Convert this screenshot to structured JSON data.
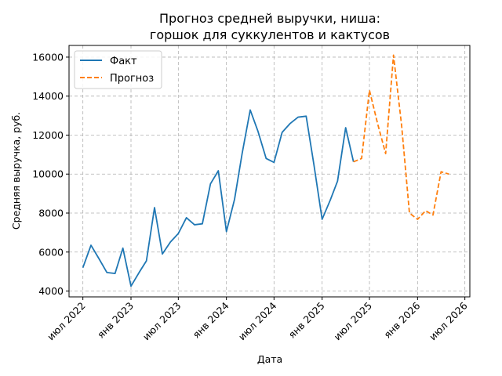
{
  "chart_data": {
    "type": "line",
    "title_line1": "Прогноз средней выручки, ниша:",
    "title_line2": "горшок для суккулентов и кактусов",
    "xlabel": "Дата",
    "ylabel": "Средняя выручка, руб.",
    "ylim": [
      3700,
      16600
    ],
    "xlim": [
      "2022-05-09",
      "2026-07-20"
    ],
    "grid": true,
    "legend_position": "top-left",
    "y_ticks": [
      4000,
      6000,
      8000,
      10000,
      12000,
      14000,
      16000
    ],
    "x_ticks": [
      {
        "date": "2022-07-01",
        "label": "июл 2022"
      },
      {
        "date": "2023-01-01",
        "label": "янв 2023"
      },
      {
        "date": "2023-07-01",
        "label": "июл 2023"
      },
      {
        "date": "2024-01-01",
        "label": "янв 2024"
      },
      {
        "date": "2024-07-01",
        "label": "июл 2024"
      },
      {
        "date": "2025-01-01",
        "label": "янв 2025"
      },
      {
        "date": "2025-07-01",
        "label": "июл 2025"
      },
      {
        "date": "2026-01-01",
        "label": "янв 2026"
      },
      {
        "date": "2026-07-01",
        "label": "июл 2026"
      }
    ],
    "series": [
      {
        "name": "Факт",
        "color": "#1f77b4",
        "style": "solid",
        "points": [
          [
            "2022-07-01",
            5200
          ],
          [
            "2022-08-01",
            6350
          ],
          [
            "2022-09-01",
            5650
          ],
          [
            "2022-10-01",
            4950
          ],
          [
            "2022-11-01",
            4900
          ],
          [
            "2022-12-01",
            6200
          ],
          [
            "2023-01-01",
            4250
          ],
          [
            "2023-02-01",
            4950
          ],
          [
            "2023-03-01",
            5550
          ],
          [
            "2023-04-01",
            8280
          ],
          [
            "2023-05-01",
            5900
          ],
          [
            "2023-06-01",
            6520
          ],
          [
            "2023-07-01",
            6950
          ],
          [
            "2023-08-01",
            7760
          ],
          [
            "2023-09-01",
            7400
          ],
          [
            "2023-10-01",
            7450
          ],
          [
            "2023-11-01",
            9500
          ],
          [
            "2023-12-01",
            10170
          ],
          [
            "2024-01-01",
            7050
          ],
          [
            "2024-02-01",
            8700
          ],
          [
            "2024-03-01",
            11050
          ],
          [
            "2024-04-01",
            13290
          ],
          [
            "2024-05-01",
            12180
          ],
          [
            "2024-06-01",
            10800
          ],
          [
            "2024-07-01",
            10600
          ],
          [
            "2024-08-01",
            12140
          ],
          [
            "2024-09-01",
            12600
          ],
          [
            "2024-10-01",
            12920
          ],
          [
            "2024-11-01",
            12970
          ],
          [
            "2024-12-01",
            10450
          ],
          [
            "2025-01-01",
            7680
          ],
          [
            "2025-02-01",
            8660
          ],
          [
            "2025-03-01",
            9640
          ],
          [
            "2025-04-01",
            12380
          ],
          [
            "2025-05-01",
            10630
          ]
        ]
      },
      {
        "name": "Прогноз",
        "color": "#ff7f0e",
        "style": "dashed",
        "points": [
          [
            "2025-05-01",
            10630
          ],
          [
            "2025-06-01",
            10800
          ],
          [
            "2025-07-01",
            14300
          ],
          [
            "2025-08-01",
            12600
          ],
          [
            "2025-09-01",
            11050
          ],
          [
            "2025-10-01",
            16100
          ],
          [
            "2025-11-01",
            12500
          ],
          [
            "2025-12-01",
            8000
          ],
          [
            "2026-01-01",
            7680
          ],
          [
            "2026-02-01",
            8120
          ],
          [
            "2026-03-01",
            7900
          ],
          [
            "2026-04-01",
            10120
          ],
          [
            "2026-05-01",
            10000
          ]
        ]
      }
    ]
  }
}
